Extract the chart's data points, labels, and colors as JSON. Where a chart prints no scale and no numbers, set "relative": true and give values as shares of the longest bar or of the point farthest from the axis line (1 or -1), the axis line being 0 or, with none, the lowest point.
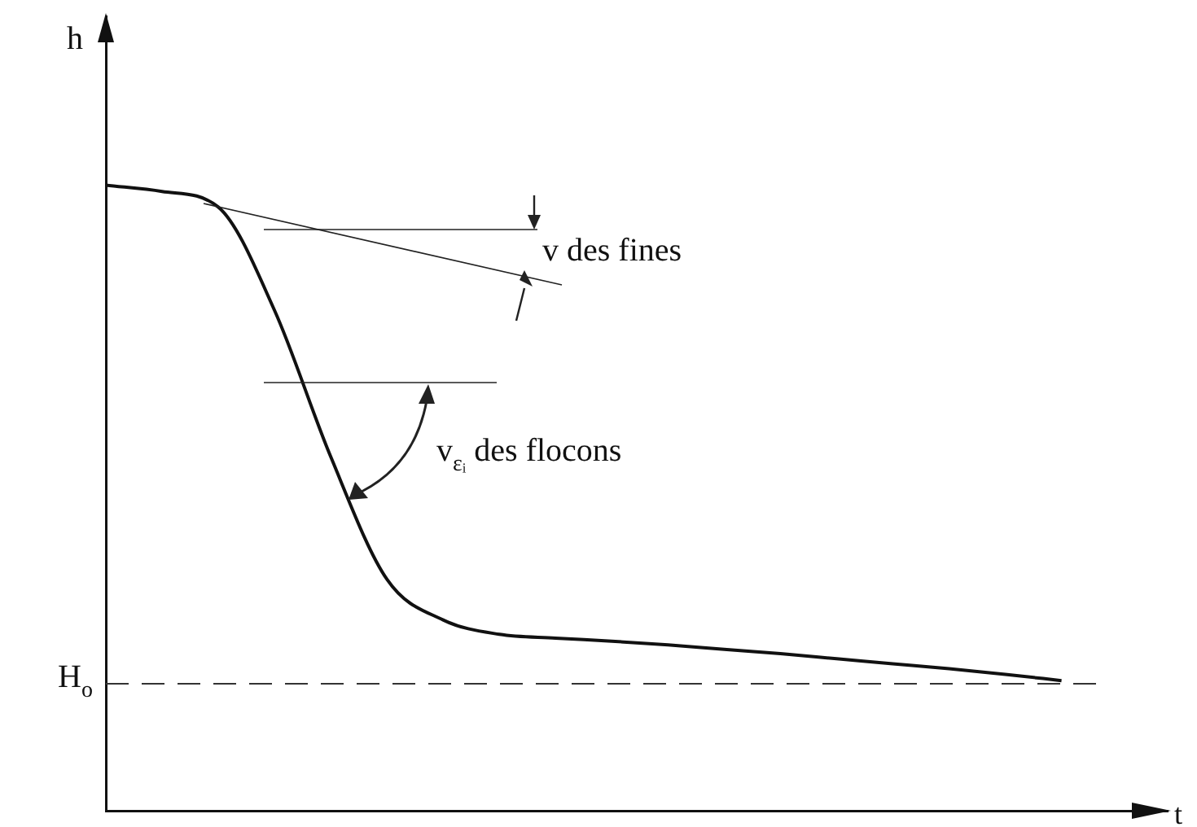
{
  "chart_data": {
    "type": "line",
    "relative": true,
    "xlabel": "t",
    "ylabel": "h",
    "categories": [
      null,
      null,
      null,
      null,
      null,
      null,
      null,
      null,
      null,
      null,
      null,
      null,
      null,
      null,
      null,
      null,
      null,
      null
    ],
    "values": [
      1.0,
      0.99,
      0.965,
      0.8,
      0.566,
      0.37,
      0.305,
      0.282,
      0.276,
      0.271,
      0.265,
      0.258,
      0.251,
      0.243,
      0.235,
      0.227,
      0.218,
      0.208
    ],
    "color": "#111111",
    "marker": "none",
    "line_style": "solid",
    "grid": false,
    "legend": false,
    "ref_lines": [
      {
        "axis": "y",
        "value": 0.203,
        "label": "H$_{o}$",
        "color": "#333333",
        "line_style": "dashed"
      }
    ],
    "annotations": [
      "v des fines",
      "v$_{εᵢ}$ des flocons"
    ]
  }
}
